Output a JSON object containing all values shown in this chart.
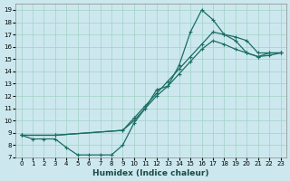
{
  "xlabel": "Humidex (Indice chaleur)",
  "bg_color": "#cce8ee",
  "grid_color": "#a8d4cc",
  "line_color": "#1a6e64",
  "xlim": [
    -0.5,
    23.5
  ],
  "ylim": [
    7,
    19.5
  ],
  "xticks": [
    0,
    1,
    2,
    3,
    4,
    5,
    6,
    7,
    8,
    9,
    10,
    11,
    12,
    13,
    14,
    15,
    16,
    17,
    18,
    19,
    20,
    21,
    22,
    23
  ],
  "yticks": [
    7,
    8,
    9,
    10,
    11,
    12,
    13,
    14,
    15,
    16,
    17,
    18,
    19
  ],
  "line1_x": [
    0,
    1,
    2,
    3,
    4,
    5,
    6,
    7,
    8,
    9,
    10,
    11,
    12,
    13,
    14,
    15,
    16,
    17,
    18,
    19,
    20,
    21,
    22,
    23
  ],
  "line1_y": [
    8.8,
    8.5,
    8.5,
    8.5,
    7.8,
    7.2,
    7.2,
    7.2,
    7.2,
    8.0,
    9.8,
    11.0,
    12.5,
    12.8,
    14.5,
    17.2,
    19.0,
    18.2,
    17.0,
    16.5,
    15.5,
    15.2,
    15.5,
    15.5
  ],
  "line2_x": [
    0,
    3,
    9,
    10,
    11,
    12,
    13,
    14,
    15,
    16,
    17,
    18,
    19,
    20,
    21,
    22,
    23
  ],
  "line2_y": [
    8.8,
    8.8,
    9.2,
    10.2,
    11.2,
    12.2,
    13.2,
    14.2,
    15.2,
    16.2,
    17.2,
    17.0,
    16.8,
    16.5,
    15.5,
    15.5,
    15.5
  ],
  "line3_x": [
    0,
    3,
    9,
    10,
    11,
    12,
    13,
    14,
    15,
    16,
    17,
    18,
    19,
    20,
    21,
    22,
    23
  ],
  "line3_y": [
    8.8,
    8.8,
    9.2,
    10.0,
    11.0,
    12.0,
    12.8,
    13.8,
    14.8,
    15.8,
    16.5,
    16.2,
    15.8,
    15.5,
    15.2,
    15.3,
    15.5
  ]
}
